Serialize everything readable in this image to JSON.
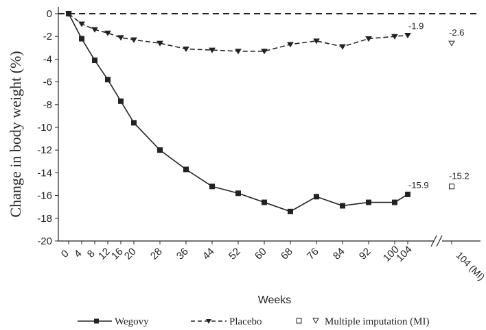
{
  "chart_data": {
    "type": "line",
    "ylabel": "Change in body weight (%)",
    "xlabel": "Weeks",
    "ylim": [
      -20,
      0
    ],
    "yticks": [
      0,
      -2,
      -4,
      -6,
      -8,
      -10,
      -12,
      -14,
      -16,
      -18,
      -20
    ],
    "xticks": [
      0,
      4,
      8,
      12,
      16,
      20,
      28,
      36,
      44,
      52,
      60,
      68,
      76,
      84,
      92,
      100,
      104
    ],
    "extra_tick_label": "104 (MI)",
    "reference_line": 0,
    "series": [
      {
        "name": "Wegovy",
        "marker": "square",
        "line": "solid",
        "x": [
          0,
          4,
          8,
          12,
          16,
          20,
          28,
          36,
          44,
          52,
          60,
          68,
          76,
          84,
          92,
          100,
          104
        ],
        "y": [
          0,
          -2.2,
          -4.1,
          -5.8,
          -7.7,
          -9.6,
          -12.0,
          -13.7,
          -15.2,
          -15.8,
          -16.6,
          -17.4,
          -16.1,
          -16.9,
          -16.6,
          -16.6,
          -15.9
        ],
        "end_label": "-15.9",
        "mi_value": -15.2,
        "mi_label": "-15.2",
        "mi_marker": "open-square"
      },
      {
        "name": "Placebo",
        "marker": "triangle-down",
        "line": "dashed",
        "x": [
          0,
          4,
          8,
          12,
          16,
          20,
          28,
          36,
          44,
          52,
          60,
          68,
          76,
          84,
          92,
          100,
          104
        ],
        "y": [
          0,
          -0.9,
          -1.4,
          -1.7,
          -2.1,
          -2.3,
          -2.6,
          -3.1,
          -3.2,
          -3.3,
          -3.3,
          -2.7,
          -2.4,
          -2.9,
          -2.2,
          -2.0,
          -1.9
        ],
        "end_label": "-1.9",
        "mi_value": -2.6,
        "mi_label": "-2.6",
        "mi_marker": "open-triangle-down"
      }
    ],
    "legend": {
      "position": "bottom",
      "items": [
        "Wegovy",
        "Placebo",
        "Multiple imputation (MI)"
      ]
    }
  }
}
